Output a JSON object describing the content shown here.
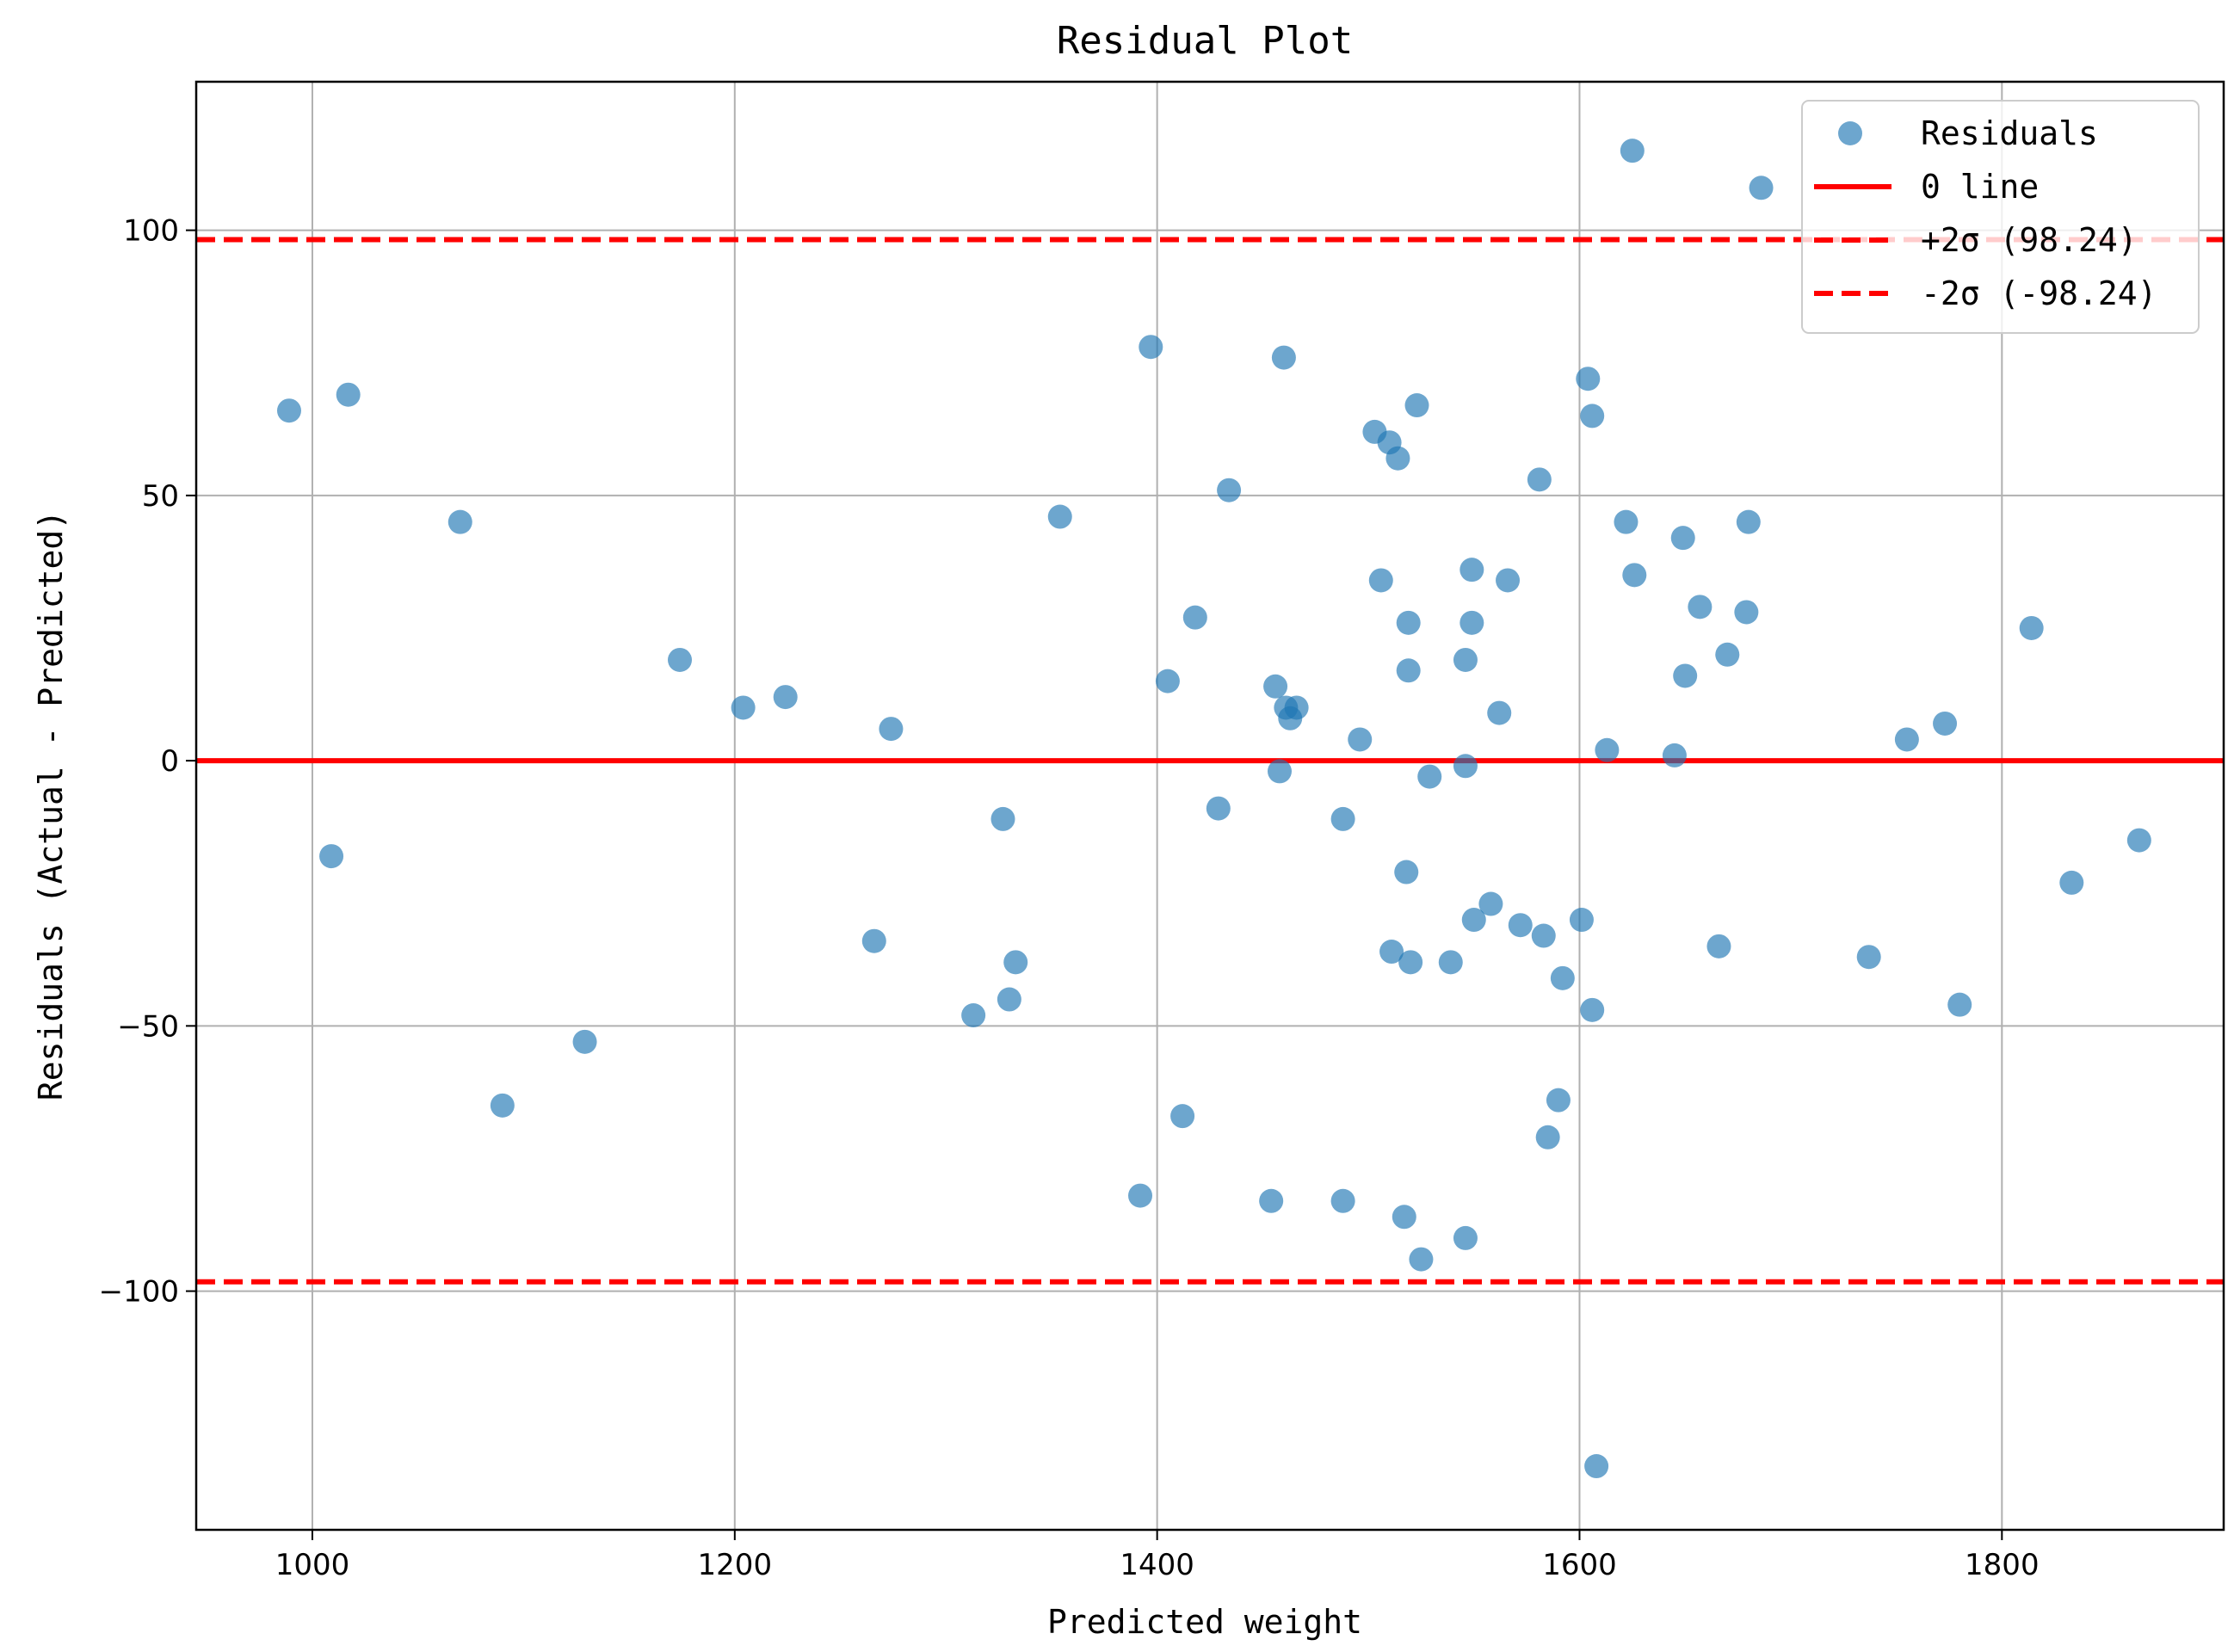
{
  "chart_data": {
    "type": "scatter",
    "title": "Residual Plot",
    "xlabel": "Predicted weight",
    "ylabel": "Residuals (Actual - Predicted)",
    "xlim": [
      945,
      1905
    ],
    "ylim": [
      -145,
      128
    ],
    "xticks": [
      1000,
      1200,
      1400,
      1600,
      1800
    ],
    "yticks": [
      -100,
      -50,
      0,
      50,
      100
    ],
    "grid": true,
    "legend_position": "top-right",
    "colors": {
      "points": "#1f77b4",
      "lines": "#ff0000"
    },
    "series": [
      {
        "name": "Residuals",
        "kind": "scatter",
        "points": [
          [
            989,
            66
          ],
          [
            1017,
            69
          ],
          [
            1009,
            -18
          ],
          [
            1070,
            45
          ],
          [
            1090,
            -65
          ],
          [
            1129,
            -53
          ],
          [
            1174,
            19
          ],
          [
            1204,
            10
          ],
          [
            1224,
            12
          ],
          [
            1266,
            -34
          ],
          [
            1274,
            6
          ],
          [
            1313,
            -48
          ],
          [
            1327,
            -11
          ],
          [
            1330,
            -45
          ],
          [
            1333,
            -38
          ],
          [
            1354,
            46
          ],
          [
            1392,
            -82
          ],
          [
            1397,
            78
          ],
          [
            1405,
            15
          ],
          [
            1412,
            -67
          ],
          [
            1418,
            27
          ],
          [
            1429,
            -9
          ],
          [
            1434,
            51
          ],
          [
            1454,
            -83
          ],
          [
            1456,
            14
          ],
          [
            1458,
            -2
          ],
          [
            1460,
            76
          ],
          [
            1461,
            10
          ],
          [
            1463,
            8
          ],
          [
            1466,
            10
          ],
          [
            1488,
            -11
          ],
          [
            1488,
            -83
          ],
          [
            1496,
            4
          ],
          [
            1503,
            62
          ],
          [
            1506,
            34
          ],
          [
            1510,
            60
          ],
          [
            1511,
            -36
          ],
          [
            1514,
            57
          ],
          [
            1517,
            -86
          ],
          [
            1518,
            -21
          ],
          [
            1519,
            17
          ],
          [
            1519,
            26
          ],
          [
            1520,
            -38
          ],
          [
            1523,
            67
          ],
          [
            1525,
            -94
          ],
          [
            1529,
            -3
          ],
          [
            1539,
            -38
          ],
          [
            1546,
            -1
          ],
          [
            1546,
            19
          ],
          [
            1546,
            -90
          ],
          [
            1549,
            36
          ],
          [
            1549,
            26
          ],
          [
            1550,
            -30
          ],
          [
            1558,
            -27
          ],
          [
            1562,
            9
          ],
          [
            1566,
            34
          ],
          [
            1572,
            -31
          ],
          [
            1581,
            53
          ],
          [
            1583,
            -33
          ],
          [
            1585,
            -71
          ],
          [
            1590,
            -64
          ],
          [
            1592,
            -41
          ],
          [
            1601,
            -30
          ],
          [
            1604,
            72
          ],
          [
            1606,
            65
          ],
          [
            1606,
            -47
          ],
          [
            1608,
            -133
          ],
          [
            1613,
            2
          ],
          [
            1622,
            45
          ],
          [
            1625,
            115
          ],
          [
            1626,
            35
          ],
          [
            1645,
            1
          ],
          [
            1649,
            42
          ],
          [
            1650,
            16
          ],
          [
            1657,
            29
          ],
          [
            1666,
            -35
          ],
          [
            1670,
            20
          ],
          [
            1679,
            28
          ],
          [
            1680,
            45
          ],
          [
            1686,
            108
          ],
          [
            1737,
            -37
          ],
          [
            1755,
            4
          ],
          [
            1773,
            7
          ],
          [
            1780,
            -46
          ],
          [
            1814,
            25
          ],
          [
            1833,
            -23
          ],
          [
            1865,
            -15
          ]
        ]
      },
      {
        "name": "0 line",
        "kind": "hline",
        "y": 0
      },
      {
        "name": "+2σ (98.24)",
        "kind": "hline",
        "y": 98.24,
        "dashed": true
      },
      {
        "name": "-2σ (-98.24)",
        "kind": "hline",
        "y": -98.24,
        "dashed": true
      }
    ]
  }
}
